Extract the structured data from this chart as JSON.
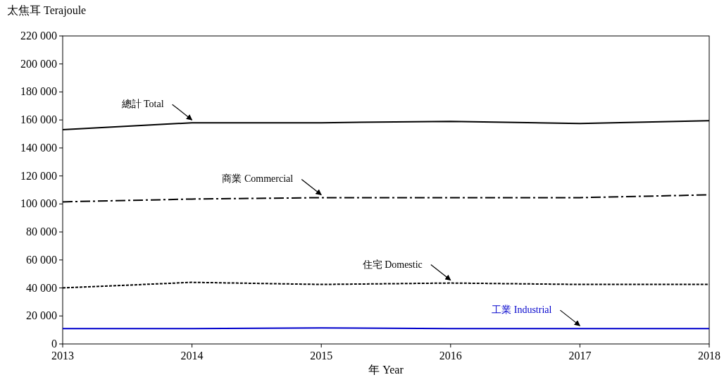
{
  "chart_data": {
    "type": "line",
    "xlabel": "年 Year",
    "ylabel": "太焦耳 Terajoule",
    "x": [
      2013,
      2014,
      2015,
      2016,
      2017,
      2018
    ],
    "xlim": [
      2013,
      2018
    ],
    "xticks": [
      2013,
      2014,
      2015,
      2016,
      2017,
      2018
    ],
    "ylim": [
      0,
      220000
    ],
    "yticks": [
      0,
      {
        "value": 20000,
        "label": "20 000"
      },
      {
        "value": 40000,
        "label": "40 000"
      },
      {
        "value": 60000,
        "label": "60 000"
      },
      {
        "value": 80000,
        "label": "80 000"
      },
      {
        "value": 100000,
        "label": "100 000"
      },
      {
        "value": 120000,
        "label": "120 000"
      },
      {
        "value": 140000,
        "label": "140 000"
      },
      {
        "value": 160000,
        "label": "160 000"
      },
      {
        "value": 180000,
        "label": "180 000"
      },
      {
        "value": 200000,
        "label": "200 000"
      },
      {
        "value": 220000,
        "label": "220 000"
      }
    ],
    "grid": false,
    "series": [
      {
        "name": "總計 Total",
        "color": "#000000",
        "line_style": "solid",
        "values": [
          153000,
          158000,
          158000,
          159000,
          157500,
          159500
        ]
      },
      {
        "name": "商業 Commercial",
        "color": "#000000",
        "line_style": "dashed",
        "values": [
          101500,
          103500,
          104500,
          104500,
          104500,
          106500
        ]
      },
      {
        "name": "住宅 Domestic",
        "color": "#000000",
        "line_style": "dotted",
        "values": [
          40000,
          44000,
          42500,
          43500,
          42500,
          42500
        ]
      },
      {
        "name": "工業 Industrial",
        "color": "#0000cc",
        "line_style": "solid",
        "values": [
          11000,
          11000,
          11500,
          11000,
          11000,
          11000
        ]
      }
    ]
  }
}
